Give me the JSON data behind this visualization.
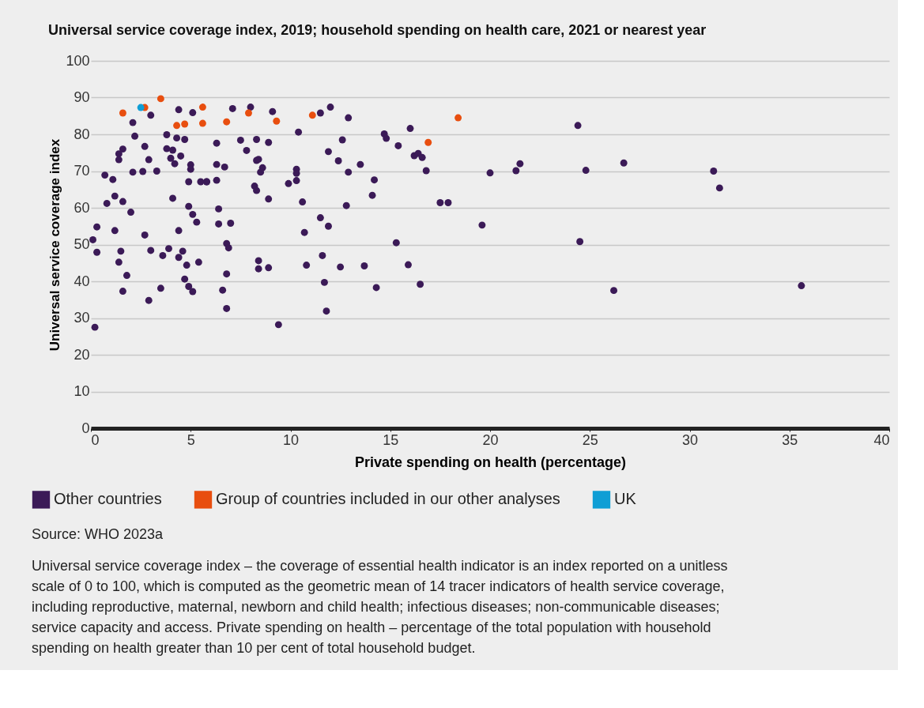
{
  "chart_data": {
    "type": "scatter",
    "title": "Universal service coverage index, 2019; household spending on health care, 2021 or nearest year",
    "xlabel": "Private spending on health (percentage)",
    "ylabel": "Universal service coverage index",
    "xlim": [
      0,
      40
    ],
    "ylim": [
      0,
      100
    ],
    "xticks": [
      0,
      5,
      10,
      15,
      20,
      25,
      30,
      35,
      40
    ],
    "yticks": [
      0,
      10,
      20,
      30,
      40,
      50,
      60,
      70,
      80,
      90,
      100
    ],
    "grid": "y",
    "legend": "bottom",
    "marker": "circle",
    "series": [
      {
        "name": "Other countries",
        "color": "#3b1a57",
        "x": [
          4.4,
          5.1,
          3.0,
          2.1,
          2.2,
          3.8,
          4.3,
          4.7,
          2.7,
          1.6,
          1.4,
          1.4,
          3.8,
          4.1,
          2.9,
          4.0,
          4.5,
          4.2,
          5.0,
          5.0,
          2.1,
          2.6,
          3.3,
          0.7,
          1.1,
          4.9,
          5.5,
          5.8,
          1.2,
          0.8,
          1.6,
          4.1,
          4.9,
          5.1,
          2.0,
          5.3,
          0.3,
          1.2,
          4.4,
          2.7,
          0.1,
          0.3,
          1.5,
          3.0,
          3.9,
          3.6,
          4.6,
          4.4,
          1.4,
          4.8,
          5.4,
          1.8,
          4.7,
          4.9,
          5.1,
          1.6,
          3.5,
          2.9,
          0.2,
          7.1,
          8.0,
          9.1,
          11.5,
          12.0,
          10.4,
          6.3,
          7.5,
          8.3,
          8.9,
          7.8,
          11.9,
          12.4,
          6.3,
          6.7,
          8.3,
          8.4,
          8.6,
          8.5,
          10.3,
          10.3,
          10.3,
          9.9,
          5.8,
          6.3,
          8.2,
          8.3,
          8.9,
          10.6,
          6.4,
          6.4,
          7.0,
          11.5,
          11.9,
          10.7,
          6.8,
          6.9,
          11.6,
          8.4,
          8.4,
          8.9,
          10.8,
          12.5,
          6.8,
          6.6,
          11.7,
          6.8,
          11.8,
          9.4,
          12.9,
          16.0,
          14.7,
          14.8,
          12.6,
          15.4,
          16.2,
          16.4,
          16.6,
          13.5,
          12.9,
          16.8,
          14.2,
          14.1,
          12.8,
          17.5,
          17.9,
          15.3,
          13.7,
          15.9,
          14.3,
          16.5,
          24.4,
          20.0,
          21.5,
          21.3,
          24.8,
          26.7,
          31.2,
          31.5,
          19.6,
          24.5,
          26.2,
          35.6
        ],
        "values": [
          86.7,
          85.9,
          85.2,
          83.2,
          79.5,
          79.9,
          79.0,
          78.6,
          76.7,
          76.0,
          74.7,
          73.1,
          76.1,
          75.7,
          73.1,
          73.5,
          74.1,
          72.0,
          71.7,
          70.5,
          69.7,
          69.9,
          70.0,
          68.9,
          67.7,
          67.1,
          67.1,
          67.1,
          63.2,
          61.2,
          61.7,
          62.6,
          60.4,
          58.2,
          58.8,
          56.1,
          54.8,
          53.8,
          53.8,
          52.6,
          51.3,
          47.9,
          48.2,
          48.4,
          48.9,
          47.0,
          48.2,
          46.5,
          45.2,
          44.4,
          45.2,
          41.6,
          40.6,
          38.6,
          37.2,
          37.3,
          38.1,
          34.8,
          27.5,
          87.0,
          87.4,
          86.2,
          85.8,
          87.4,
          80.6,
          77.6,
          78.4,
          78.6,
          77.8,
          75.6,
          75.3,
          72.8,
          71.8,
          71.1,
          72.9,
          73.2,
          70.9,
          69.7,
          70.5,
          69.4,
          67.4,
          66.6,
          67.1,
          67.5,
          65.9,
          64.7,
          62.4,
          61.6,
          59.7,
          55.6,
          55.8,
          57.3,
          55.0,
          53.3,
          50.3,
          49.1,
          47.0,
          45.6,
          43.4,
          43.7,
          44.4,
          43.9,
          42.0,
          37.6,
          39.7,
          32.6,
          31.9,
          28.2,
          84.5,
          81.6,
          80.1,
          78.9,
          78.5,
          76.9,
          74.2,
          74.8,
          73.7,
          71.8,
          69.7,
          70.1,
          67.6,
          63.4,
          60.6,
          61.4,
          61.4,
          50.5,
          44.2,
          44.5,
          38.3,
          39.2,
          82.4,
          69.5,
          72.0,
          70.1,
          70.2,
          72.2,
          70.0,
          65.4,
          55.3,
          50.8,
          37.5,
          38.8
        ]
      },
      {
        "name": "Group of countries included in our other analyses",
        "color": "#e84e0f",
        "x": [
          1.6,
          2.7,
          3.5,
          4.3,
          4.7,
          5.6,
          5.6,
          6.8,
          7.9,
          9.3,
          11.1,
          18.4,
          16.9
        ],
        "values": [
          85.8,
          87.3,
          89.7,
          82.4,
          82.8,
          87.4,
          83.0,
          83.4,
          85.8,
          83.6,
          85.2,
          84.5,
          77.8
        ]
      },
      {
        "name": "UK",
        "color": "#0f9ed5",
        "x": [
          2.5
        ],
        "values": [
          87.3
        ]
      }
    ],
    "annotations": [
      "Source: WHO 2023a",
      "Universal service coverage index – the coverage of essential health indicator is an index reported on a unitless scale of 0 to 100, which is computed as the geometric mean of 14 tracer indicators of health service coverage, including reproductive, maternal, newborn and child health; infectious diseases; non-communicable diseases; service capacity and access. Private spending on health – percentage of the total population with household spending on health greater than 10 per cent of total household budget."
    ]
  }
}
